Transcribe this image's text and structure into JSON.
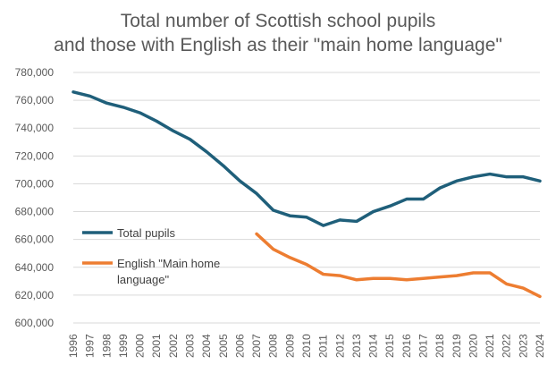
{
  "chart_data": {
    "type": "line",
    "title_line1": "Total number of Scottish school pupils",
    "title_line2": "and those with English as their \"main home language\"",
    "xlabel": "",
    "ylabel": "",
    "ylim": [
      600000,
      780000
    ],
    "ytick_step": 20000,
    "y_tick_labels": [
      "600,000",
      "620,000",
      "640,000",
      "660,000",
      "680,000",
      "700,000",
      "720,000",
      "740,000",
      "760,000",
      "780,000"
    ],
    "grid": true,
    "legend_position": "inside-left",
    "categories": [
      "1996",
      "1997",
      "1998",
      "1999",
      "2000",
      "2001",
      "2002",
      "2003",
      "2004",
      "2005",
      "2006",
      "2007",
      "2008",
      "2009",
      "2010",
      "2011",
      "2012",
      "2013",
      "2014",
      "2015",
      "2016",
      "2017",
      "2018",
      "2019",
      "2020",
      "2021",
      "2022",
      "2023",
      "2024"
    ],
    "series": [
      {
        "name": "Total pupils",
        "color": "#1f5f7a",
        "values": [
          766000,
          763000,
          758000,
          755000,
          751000,
          745000,
          738000,
          732000,
          723000,
          713000,
          702000,
          693000,
          681000,
          677000,
          676000,
          670000,
          674000,
          673000,
          680000,
          684000,
          689000,
          689000,
          697000,
          702000,
          705000,
          707000,
          705000,
          705000,
          702000
        ]
      },
      {
        "name": "English \"Main home language\"",
        "name_line1": "English \"Main home",
        "name_line2": "language\"",
        "color": "#ed7d31",
        "values": [
          null,
          null,
          null,
          null,
          null,
          null,
          null,
          null,
          null,
          null,
          null,
          664000,
          653000,
          647000,
          642000,
          635000,
          634000,
          631000,
          632000,
          632000,
          631000,
          632000,
          633000,
          634000,
          636000,
          636000,
          628000,
          625000,
          619000
        ]
      }
    ]
  }
}
